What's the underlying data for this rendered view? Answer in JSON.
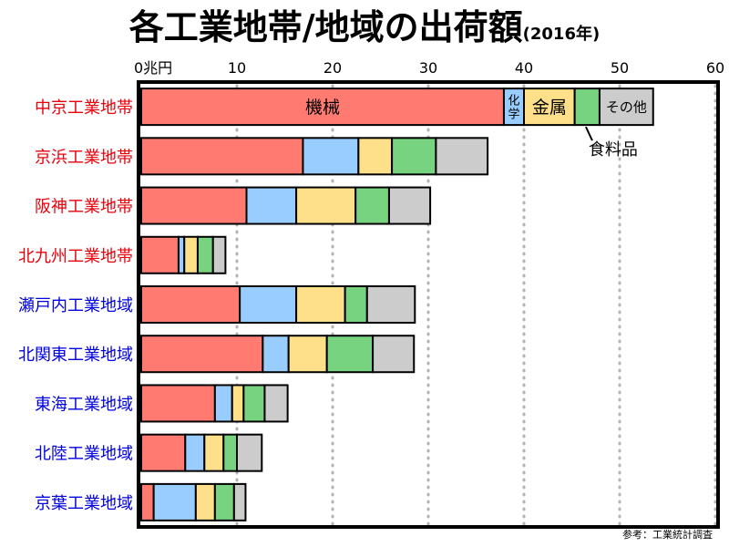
{
  "title": "各工業地帯/地域の出荷額",
  "title_suffix": "(2016年)",
  "source": "参考：工業統計調査",
  "chart_data": {
    "type": "bar",
    "orientation": "horizontal",
    "stacked": true,
    "x_axis": {
      "ticks": [
        0,
        10,
        20,
        30,
        40,
        50,
        60
      ],
      "tick_labels": [
        "0兆円",
        "10",
        "20",
        "30",
        "40",
        "50",
        "60"
      ],
      "range": [
        0,
        60
      ]
    },
    "grid": true,
    "categories": [
      {
        "name": "中京工業地帯",
        "kind": "地帯",
        "color": "#e8000b"
      },
      {
        "name": "京浜工業地帯",
        "kind": "地帯",
        "color": "#e8000b"
      },
      {
        "name": "阪神工業地帯",
        "kind": "地帯",
        "color": "#e8000b"
      },
      {
        "name": "北九州工業地帯",
        "kind": "地帯",
        "color": "#e8000b"
      },
      {
        "name": "瀬戸内工業地域",
        "kind": "地域",
        "color": "#0000e0"
      },
      {
        "name": "北関東工業地域",
        "kind": "地域",
        "color": "#0000e0"
      },
      {
        "name": "東海工業地域",
        "kind": "地域",
        "color": "#0000e0"
      },
      {
        "name": "北陸工業地域",
        "kind": "地域",
        "color": "#0000e0"
      },
      {
        "name": "京葉工業地域",
        "kind": "地域",
        "color": "#0000e0"
      }
    ],
    "series": [
      {
        "name": "機械",
        "color": "#ff7b72",
        "values": [
          37.9,
          16.9,
          11.0,
          3.9,
          10.3,
          12.7,
          7.7,
          4.6,
          1.3
        ]
      },
      {
        "name": "化学",
        "color": "#99ccff",
        "values": [
          2.1,
          5.8,
          5.2,
          0.6,
          5.9,
          2.7,
          1.8,
          2.0,
          4.4
        ]
      },
      {
        "name": "金属",
        "color": "#ffe08a",
        "values": [
          5.3,
          3.5,
          6.2,
          1.4,
          5.1,
          4.0,
          1.2,
          2.0,
          2.0
        ]
      },
      {
        "name": "食料品",
        "color": "#77d37f",
        "values": [
          2.6,
          4.6,
          3.5,
          1.6,
          2.3,
          4.8,
          2.2,
          1.4,
          2.0
        ]
      },
      {
        "name": "その他",
        "color": "#cccccc",
        "values": [
          5.6,
          5.4,
          4.3,
          1.3,
          5.0,
          4.3,
          2.4,
          2.6,
          1.2
        ]
      }
    ],
    "segment_labels": [
      {
        "series": 0,
        "category": 0,
        "text": "機械"
      },
      {
        "series": 1,
        "category": 0,
        "text": "化\n学"
      },
      {
        "series": 2,
        "category": 0,
        "text": "金属"
      },
      {
        "series": 4,
        "category": 0,
        "text": "その他"
      }
    ],
    "annotations": [
      {
        "text": "食料品",
        "series": 3,
        "category": 0
      }
    ]
  }
}
